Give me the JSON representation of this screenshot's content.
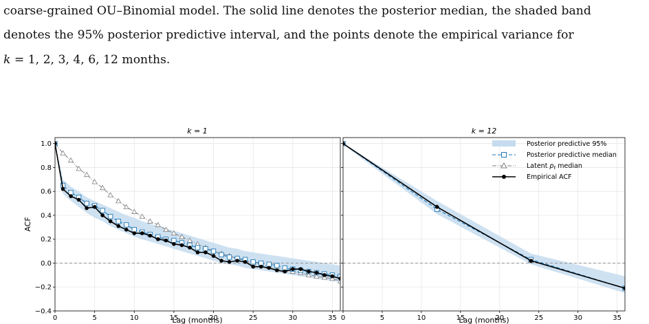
{
  "caption": {
    "line1": "coarse-grained OU–Binomial model. The solid line denotes the posterior median, the shaded band",
    "line2": "denotes the 95% posterior predictive interval, and the points denote the empirical variance for",
    "line3_prefix": "k",
    "line3_rest": " = 1, 2, 3, 4, 6, 12 months."
  },
  "chart_data": [
    {
      "type": "line",
      "title": "k = 1",
      "xlabel": "Lag (months)",
      "ylabel": "ACF",
      "xlim": [
        0,
        36
      ],
      "ylim": [
        -0.4,
        1.05
      ],
      "xticks": [
        "0",
        "5",
        "10",
        "15",
        "20",
        "25",
        "30",
        "35"
      ],
      "yticks": [
        "−0.4",
        "−0.2",
        "0.0",
        "0.2",
        "0.4",
        "0.6",
        "0.8",
        "1.0"
      ],
      "grid": true,
      "reference_line": 0,
      "x": [
        0,
        1,
        2,
        3,
        4,
        5,
        6,
        7,
        8,
        9,
        10,
        11,
        12,
        13,
        14,
        15,
        16,
        17,
        18,
        19,
        20,
        21,
        22,
        23,
        24,
        25,
        26,
        27,
        28,
        29,
        30,
        31,
        32,
        33,
        34,
        35,
        36
      ],
      "band_lower": [
        0.98,
        0.58,
        0.52,
        0.47,
        0.42,
        0.38,
        0.35,
        0.31,
        0.28,
        0.25,
        0.22,
        0.2,
        0.18,
        0.16,
        0.14,
        0.12,
        0.1,
        0.08,
        0.06,
        0.04,
        0.02,
        0.0,
        -0.01,
        -0.02,
        -0.04,
        -0.05,
        -0.06,
        -0.07,
        -0.08,
        -0.09,
        -0.1,
        -0.11,
        -0.12,
        -0.13,
        -0.14,
        -0.15,
        -0.16
      ],
      "band_upper": [
        1.0,
        0.7,
        0.64,
        0.6,
        0.55,
        0.52,
        0.49,
        0.46,
        0.43,
        0.4,
        0.38,
        0.35,
        0.33,
        0.31,
        0.29,
        0.27,
        0.25,
        0.23,
        0.21,
        0.19,
        0.17,
        0.15,
        0.13,
        0.12,
        0.1,
        0.09,
        0.08,
        0.07,
        0.06,
        0.05,
        0.04,
        0.03,
        0.02,
        0.01,
        0.0,
        -0.01,
        -0.02
      ],
      "series": [
        {
          "name": "Posterior predictive median",
          "style": "dashed-square",
          "color": "#1f77b4",
          "values": [
            1.0,
            0.65,
            0.59,
            0.55,
            0.5,
            0.48,
            0.44,
            0.39,
            0.35,
            0.32,
            0.28,
            0.26,
            0.24,
            0.22,
            0.2,
            0.19,
            0.17,
            0.15,
            0.13,
            0.12,
            0.1,
            0.07,
            0.05,
            0.04,
            0.03,
            0.01,
            0.0,
            -0.01,
            -0.02,
            -0.04,
            -0.05,
            -0.06,
            -0.07,
            -0.08,
            -0.09,
            -0.1,
            -0.11
          ]
        },
        {
          "name": "Latent p_t median",
          "style": "dashdot-triangle",
          "color": "#7f7f7f",
          "values": [
            1.0,
            0.92,
            0.86,
            0.79,
            0.74,
            0.68,
            0.63,
            0.57,
            0.52,
            0.47,
            0.43,
            0.39,
            0.35,
            0.32,
            0.28,
            0.25,
            0.22,
            0.19,
            0.16,
            0.13,
            0.1,
            0.08,
            0.06,
            0.04,
            0.02,
            0.0,
            -0.01,
            -0.03,
            -0.04,
            -0.06,
            -0.07,
            -0.08,
            -0.1,
            -0.11,
            -0.12,
            -0.13,
            -0.15
          ]
        },
        {
          "name": "Empirical ACF",
          "style": "solid-dot",
          "color": "#000000",
          "values": [
            1.0,
            0.62,
            0.56,
            0.53,
            0.46,
            0.47,
            0.4,
            0.35,
            0.31,
            0.28,
            0.25,
            0.25,
            0.23,
            0.2,
            0.19,
            0.16,
            0.15,
            0.13,
            0.09,
            0.09,
            0.06,
            0.02,
            0.01,
            0.02,
            0.01,
            -0.03,
            -0.03,
            -0.04,
            -0.06,
            -0.07,
            -0.05,
            -0.05,
            -0.07,
            -0.08,
            -0.1,
            -0.11,
            -0.13
          ]
        }
      ]
    },
    {
      "type": "line",
      "title": "k = 12",
      "xlabel": "Lag (months)",
      "xlim": [
        0,
        36
      ],
      "ylim": [
        -0.4,
        1.05
      ],
      "xticks": [
        "0",
        "5",
        "10",
        "15",
        "20",
        "25",
        "30",
        "35"
      ],
      "grid": true,
      "reference_line": 0,
      "legend": "top-right",
      "x": [
        0,
        12,
        24,
        36
      ],
      "band_lower": [
        0.99,
        0.41,
        -0.01,
        -0.25
      ],
      "band_upper": [
        1.0,
        0.52,
        0.08,
        -0.11
      ],
      "series": [
        {
          "name": "Posterior predictive median",
          "style": "dashed-square",
          "color": "#1f77b4",
          "values": [
            1.0,
            0.45,
            0.03,
            -0.21
          ]
        },
        {
          "name": "Latent p_t median",
          "style": "dashdot-triangle",
          "color": "#7f7f7f",
          "values": [
            1.0,
            0.47,
            0.02,
            -0.21
          ]
        },
        {
          "name": "Empirical ACF",
          "style": "solid-dot",
          "color": "#000000",
          "values": [
            1.0,
            0.47,
            0.02,
            -0.21
          ]
        }
      ]
    }
  ],
  "legend": {
    "band_label": "Posterior predictive 95%",
    "median_label": "Posterior predictive median",
    "latent_label": "Latent",
    "latent_symbol": "p",
    "latent_sub": "t",
    "latent_suffix": " median",
    "empirical_label": "Empirical ACF"
  },
  "colors": {
    "band": "#c6dcee",
    "median": "#1f77b4",
    "latent": "#7f7f7f",
    "empirical": "#000000",
    "grid": "#e6e6e6",
    "refline": "#888888"
  }
}
